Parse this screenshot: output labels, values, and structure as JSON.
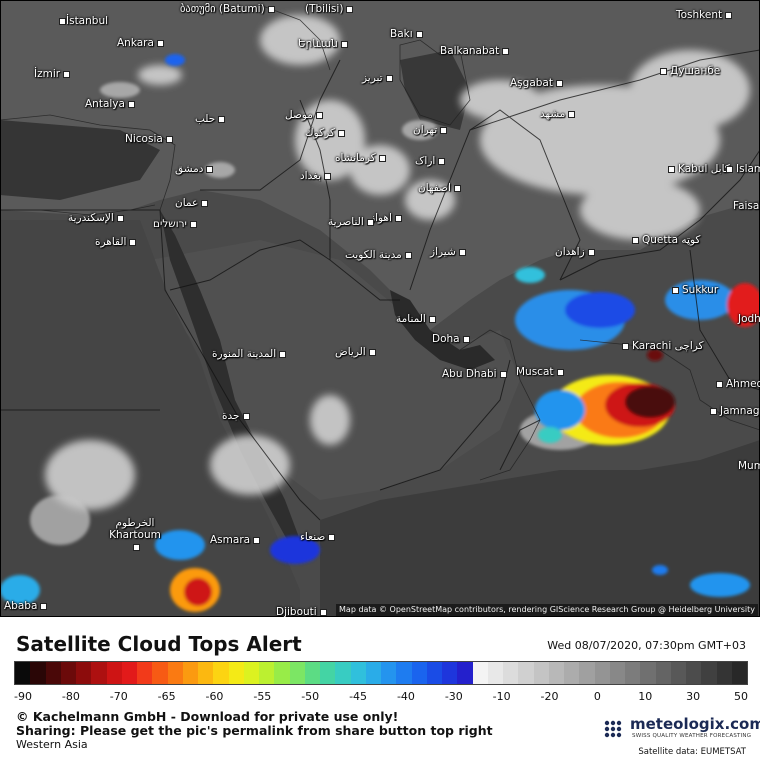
{
  "map": {
    "cities": [
      {
        "id": "istanbul",
        "label": "İstanbul",
        "dot": "left"
      },
      {
        "id": "batumi",
        "label": "ბათუმი (Batumi)",
        "dot": "right"
      },
      {
        "id": "tbilisi",
        "label": "(Tbilisi)",
        "dot": "right"
      },
      {
        "id": "toshkent",
        "label": "Toshkent",
        "dot": "right"
      },
      {
        "id": "ankara",
        "label": "Ankara",
        "dot": "right"
      },
      {
        "id": "yerevan",
        "label": "Երևան",
        "dot": "right"
      },
      {
        "id": "baki",
        "label": "Bakı",
        "dot": "right"
      },
      {
        "id": "balkanabat",
        "label": "Balkanabat",
        "dot": "right"
      },
      {
        "id": "izmir",
        "label": "İzmir",
        "dot": "right"
      },
      {
        "id": "tabriz",
        "label": "تبریز",
        "dot": "right"
      },
      {
        "id": "asgabat",
        "label": "Aşgabat",
        "dot": "right"
      },
      {
        "id": "dushanbe",
        "label": "Душанбе",
        "dot": "left"
      },
      {
        "id": "antalya",
        "label": "Antalya",
        "dot": "right"
      },
      {
        "id": "halab",
        "label": "حلب",
        "dot": "right"
      },
      {
        "id": "mosul",
        "label": "موصل",
        "dot": "right"
      },
      {
        "id": "mashhad",
        "label": "مشهد",
        "dot": "right"
      },
      {
        "id": "nicosia",
        "label": "Nicosia",
        "dot": "right"
      },
      {
        "id": "kirkuk",
        "label": "كركوك",
        "dot": "right"
      },
      {
        "id": "tehran",
        "label": "تهران",
        "dot": "right"
      },
      {
        "id": "kermanshah",
        "label": "کرمانشاه",
        "dot": "right"
      },
      {
        "id": "arak",
        "label": "اراک",
        "dot": "right"
      },
      {
        "id": "dimashq",
        "label": "دمشق",
        "dot": "right"
      },
      {
        "id": "baghdad",
        "label": "بغداد",
        "dot": "right"
      },
      {
        "id": "kabul",
        "label": "Kabul کابل",
        "dot": "left"
      },
      {
        "id": "islam",
        "label": "Islam",
        "dot": "left"
      },
      {
        "id": "isfahan",
        "label": "اصفهان",
        "dot": "right"
      },
      {
        "id": "amman",
        "label": "عمان",
        "dot": "right"
      },
      {
        "id": "faisa",
        "label": "Faisa",
        "dot": "right"
      },
      {
        "id": "iskandariya",
        "label": "الإسكندرية",
        "dot": "right"
      },
      {
        "id": "yerushalayim",
        "label": "ירושלים",
        "dot": "right"
      },
      {
        "id": "ahvaz",
        "label": "اهواز",
        "dot": "right"
      },
      {
        "id": "nasiriyah",
        "label": "الناصرية",
        "dot": "right"
      },
      {
        "id": "qahira",
        "label": "القاهرة",
        "dot": "right"
      },
      {
        "id": "quetta",
        "label": "Quetta كوټه",
        "dot": "left"
      },
      {
        "id": "shiraz",
        "label": "شیراز",
        "dot": "right"
      },
      {
        "id": "zahedan",
        "label": "زاهدان",
        "dot": "right"
      },
      {
        "id": "kuwait",
        "label": "مدينة الكويت",
        "dot": "right"
      },
      {
        "id": "sukkur",
        "label": "Sukkur",
        "dot": "left"
      },
      {
        "id": "jodh",
        "label": "Jodh",
        "dot": "right"
      },
      {
        "id": "manama",
        "label": "المنامة",
        "dot": "right"
      },
      {
        "id": "doha",
        "label": "Doha",
        "dot": "right"
      },
      {
        "id": "karachi",
        "label": "Karachi كراچی",
        "dot": "left"
      },
      {
        "id": "madina",
        "label": "المدينة المنورة",
        "dot": "right"
      },
      {
        "id": "riyadh",
        "label": "الرياض",
        "dot": "right"
      },
      {
        "id": "muscat",
        "label": "Muscat",
        "dot": "right"
      },
      {
        "id": "abudhabi",
        "label": "Abu Dhabi",
        "dot": "right"
      },
      {
        "id": "ahmed",
        "label": "Ahmed",
        "dot": "left"
      },
      {
        "id": "jeddah",
        "label": "جدة",
        "dot": "right"
      },
      {
        "id": "jamnaga",
        "label": "Jamnaga",
        "dot": "left"
      },
      {
        "id": "mum",
        "label": "Mum",
        "dot": "right"
      },
      {
        "id": "khartoum",
        "label": "الخرطوم Khartoum",
        "dot": "right"
      },
      {
        "id": "asmara",
        "label": "Asmara",
        "dot": "right"
      },
      {
        "id": "sanaa",
        "label": "صنعاء",
        "dot": "right"
      },
      {
        "id": "djibouti",
        "label": "Djibouti",
        "dot": "right"
      },
      {
        "id": "ababa",
        "label": "Ababa",
        "dot": "right"
      }
    ],
    "attribution": "Map data © OpenStreetMap contributors, rendering GIScience Research Group @ Heidelberg University"
  },
  "footer": {
    "title": "Satellite Cloud Tops Alert",
    "datetime": "Wed 08/07/2020, 07:30pm GMT+03",
    "scale": {
      "ticks": [
        "-90",
        "-80",
        "-70",
        "-65",
        "-60",
        "-55",
        "-50",
        "-45",
        "-40",
        "-30",
        "-10",
        "-20",
        "0",
        "10",
        "30",
        "50"
      ],
      "min": -90,
      "max": 50,
      "colors": [
        "#0a0a0a",
        "#2a0606",
        "#4a0808",
        "#6b0a0a",
        "#8c0c0c",
        "#ad1010",
        "#ce1414",
        "#e21a1a",
        "#f23a1a",
        "#f75a14",
        "#fa7a12",
        "#fb9a10",
        "#fcb810",
        "#fcd412",
        "#f4ea16",
        "#dcf220",
        "#bcf030",
        "#98ec48",
        "#7ce664",
        "#5cdc84",
        "#44d4a4",
        "#38ccc2",
        "#30c0dc",
        "#2aace8",
        "#2494ee",
        "#1e7cf0",
        "#1a64ee",
        "#1a4ce6",
        "#1e36dc",
        "#2420cc",
        "#f4f4f4",
        "#e8e8e8",
        "#dcdcdc",
        "#d0d0d0",
        "#c4c4c4",
        "#b8b8b8",
        "#acacac",
        "#a0a0a0",
        "#949494",
        "#888888",
        "#7c7c7c",
        "#707070",
        "#646464",
        "#585858",
        "#4c4c4c",
        "#404040",
        "#343434",
        "#282828"
      ]
    },
    "copyright": "© Kachelmann GmbH - Download for private use only!",
    "sharing": "Sharing: Please get the pic's permalink from share button top right",
    "region": "Western Asia",
    "logo_text": "meteologix.com",
    "logo_sub": "SWISS QUALITY WEATHER FORECASTING",
    "satellite_data": "Satellite data: EUMETSAT"
  }
}
